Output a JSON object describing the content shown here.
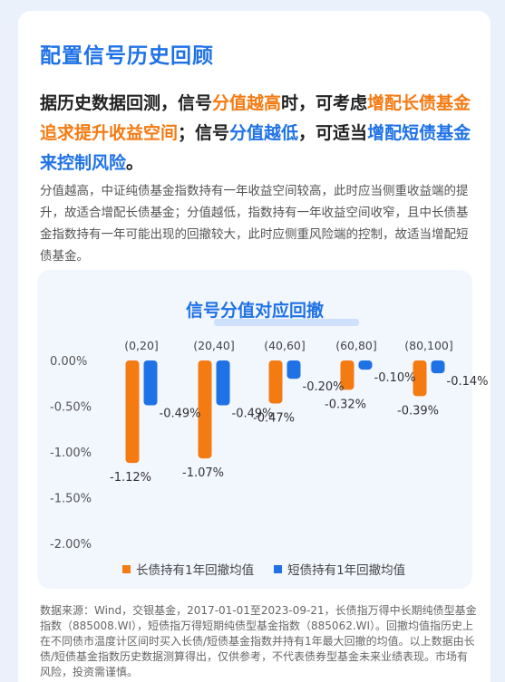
{
  "header": {
    "title": "配置信号历史回顾"
  },
  "lead": {
    "p1": "据历史数据回测，信号",
    "h1": "分值越高",
    "p2": "时，可考虑",
    "h2": "增配长债基金追求提升收益空间",
    "p3": "；信号",
    "h3": "分值越低",
    "p4": "，可适当",
    "h4": "增配短债基金来控制风险",
    "p5": "。"
  },
  "body": "分值越高，中证纯债基金指数持有一年收益空间较高，此时应当侧重收益端的提升，故适合增配长债基金；分值越低，指数持有一年收益空间收窄，且中长债基金指数持有一年可能出现的回撤较大，此时应侧重风险端的控制，故适当增配短债基金。",
  "chart_data": {
    "type": "bar",
    "title": "信号分值对应回撤",
    "categories": [
      "(0,20]",
      "(20,40]",
      "(40,60]",
      "(60,80]",
      "(80,100]"
    ],
    "series": [
      {
        "name": "长债持有1年回撤均值",
        "values": [
          -1.12,
          -1.07,
          -0.47,
          -0.32,
          -0.39
        ],
        "labels": [
          "-1.12%",
          "-1.07%",
          "-0.47%",
          "-0.32%",
          "-0.39%"
        ],
        "color": "#f47a12"
      },
      {
        "name": "短债持有1年回撤均值",
        "values": [
          -0.49,
          -0.49,
          -0.2,
          -0.1,
          -0.14
        ],
        "labels": [
          "-0.49%",
          "-0.49%",
          "-0.20%",
          "-0.10%",
          "-0.14%"
        ],
        "color": "#1f72e6"
      }
    ],
    "y_ticks": [
      "0.00%",
      "-0.50%",
      "-1.00%",
      "-1.50%",
      "-2.00%"
    ],
    "ylim": [
      -2.0,
      0.0
    ],
    "legend_position": "bottom",
    "grid": false
  },
  "source": "数据来源：Wind，交银基金，2017-01-01至2023-09-21，长债指万得中长期纯债型基金指数（885008.WI），短债指万得短期纯债型基金指数（885062.WI）。回撤均值指历史上在不同债市温度计区间时买入长债/短债基金指数并持有1年最大回撤的均值。以上数据由长债/短债基金指数历史数据测算得出，仅供参考，不代表债券型基金未来业绩表现。市场有风险，投资需谨慎。"
}
